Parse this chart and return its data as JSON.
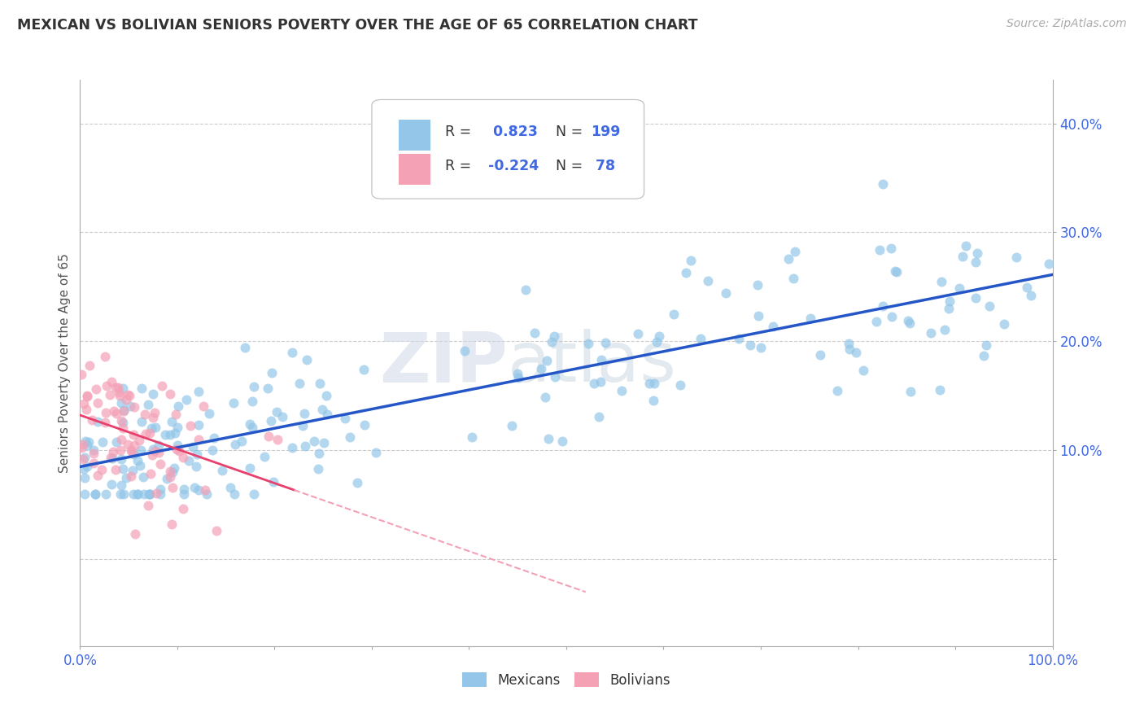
{
  "title": "MEXICAN VS BOLIVIAN SENIORS POVERTY OVER THE AGE OF 65 CORRELATION CHART",
  "source": "Source: ZipAtlas.com",
  "ylabel": "Seniors Poverty Over the Age of 65",
  "xlim": [
    0.0,
    1.0
  ],
  "ylim": [
    -0.08,
    0.44
  ],
  "x_ticks": [
    0.0,
    0.1,
    0.2,
    0.3,
    0.4,
    0.5,
    0.6,
    0.7,
    0.8,
    0.9,
    1.0
  ],
  "x_tick_labels": [
    "0.0%",
    "",
    "",
    "",
    "",
    "",
    "",
    "",
    "",
    "",
    "100.0%"
  ],
  "y_ticks": [
    0.0,
    0.1,
    0.2,
    0.3,
    0.4
  ],
  "y_tick_labels": [
    "",
    "10.0%",
    "20.0%",
    "30.0%",
    "40.0%"
  ],
  "mexican_color": "#93C6E8",
  "bolivian_color": "#F4A0B5",
  "mexican_line_color": "#2456C8",
  "bolivian_line_color": "#E8406C",
  "bolivian_dash_color": "#F4A0B5",
  "R_mexican": 0.823,
  "N_mexican": 199,
  "R_bolivian": -0.224,
  "N_bolivian": 78,
  "background_color": "#FFFFFF",
  "grid_color": "#CCCCCC",
  "watermark_zip": "ZIP",
  "watermark_atlas": "atlas",
  "title_color": "#333333",
  "axis_label_color": "#555555",
  "tick_color": "#4169E1",
  "mex_line_start_y": 0.08,
  "mex_line_end_y": 0.26,
  "bol_line_start_y": 0.135,
  "bol_line_slope": -0.38
}
